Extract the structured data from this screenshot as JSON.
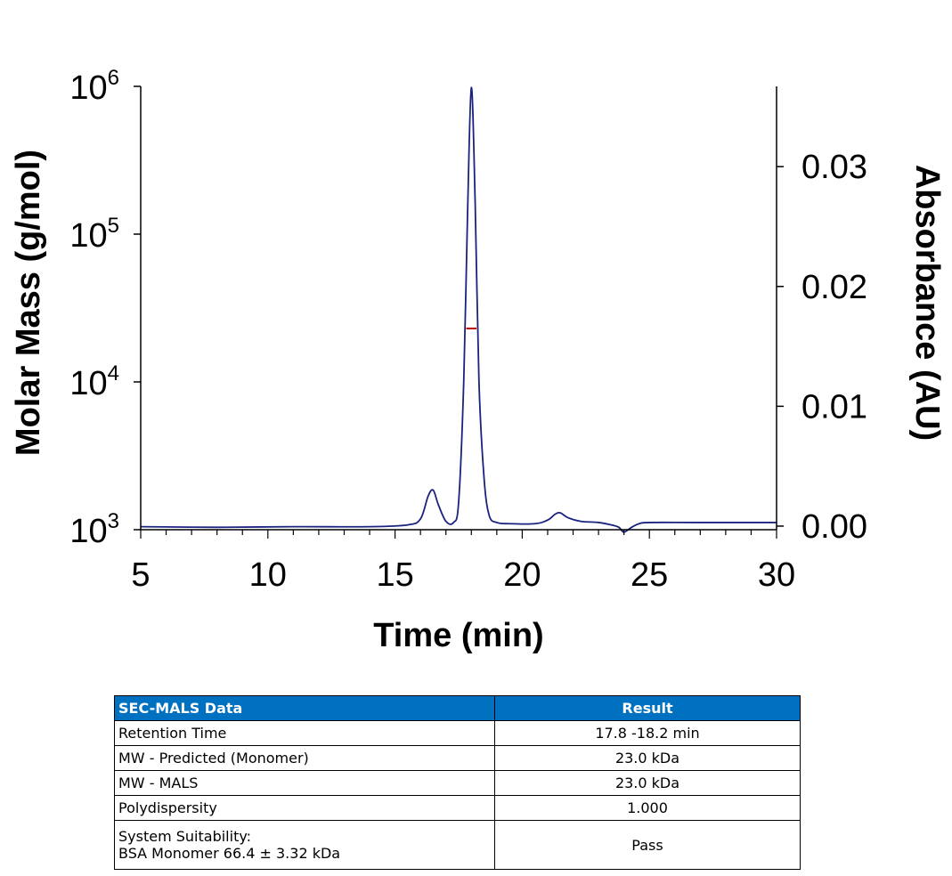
{
  "chart_data": {
    "type": "line",
    "xlabel": "Time (min)",
    "ylabel": "Molar Mass (g/mol)",
    "y2label": "Absorbance (AU)",
    "xlim": [
      5,
      30
    ],
    "xticks": [
      "5",
      "10",
      "15",
      "20",
      "25",
      "30"
    ],
    "ylim": [
      1000,
      1000000
    ],
    "yscale": "log",
    "yticks": [
      {
        "base": "10",
        "exp": "3",
        "value": 1000
      },
      {
        "base": "10",
        "exp": "4",
        "value": 10000
      },
      {
        "base": "10",
        "exp": "5",
        "value": 100000
      },
      {
        "base": "10",
        "exp": "6",
        "value": 1000000
      }
    ],
    "y2lim": [
      -0.0003,
      0.0367
    ],
    "y2ticks": [
      "0.00",
      "0.01",
      "0.02",
      "0.03"
    ],
    "y2tick_values": [
      0,
      0.01,
      0.02,
      0.03
    ],
    "grid": false,
    "series": [
      {
        "axis": "right",
        "color": "#1a237e",
        "x": [
          5,
          8,
          11,
          14,
          15.5,
          16,
          16.3,
          16.5,
          16.7,
          17.0,
          17.3,
          17.5,
          17.7,
          17.85,
          18.0,
          18.15,
          18.3,
          18.5,
          18.7,
          19.0,
          19.5,
          20.5,
          21.0,
          21.3,
          21.5,
          21.8,
          22.3,
          23.0,
          23.5,
          23.8,
          24.0,
          24.3,
          24.6,
          25,
          27,
          30
        ],
        "y": [
          -5e-05,
          -0.0001,
          -5e-05,
          -5e-05,
          0.0001,
          0.0006,
          0.0025,
          0.003,
          0.0018,
          0.0004,
          0.0003,
          0.002,
          0.012,
          0.026,
          0.0366,
          0.027,
          0.012,
          0.004,
          0.0009,
          0.0003,
          0.0002,
          0.0002,
          0.0005,
          0.001,
          0.0011,
          0.0007,
          0.0004,
          0.0003,
          0.0001,
          -0.0001,
          -0.0005,
          -0.0001,
          0.0002,
          0.0003,
          0.0003,
          0.0003
        ]
      },
      {
        "axis": "left",
        "color": "#c00000",
        "x": [
          17.8,
          18.2
        ],
        "y": [
          23000,
          23000
        ]
      }
    ]
  },
  "table": {
    "headers": [
      "SEC-MALS Data",
      "Result"
    ],
    "rows": [
      {
        "label": "Retention Time",
        "value": "17.8 -18.2 min"
      },
      {
        "label": "MW - Predicted (Monomer)",
        "value": "23.0 kDa"
      },
      {
        "label": "MW - MALS",
        "value": "23.0 kDa"
      },
      {
        "label": "Polydispersity",
        "value": "1.000"
      },
      {
        "label": "System Suitability:",
        "label2": "BSA Monomer 66.4 ± 3.32 kDa",
        "value": "Pass"
      }
    ],
    "header_color": "#0070c0"
  }
}
